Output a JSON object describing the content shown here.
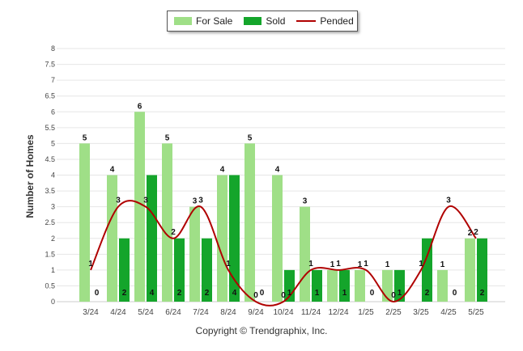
{
  "legend": {
    "for_sale": "For Sale",
    "sold": "Sold",
    "pended": "Pended"
  },
  "copyright": "Copyright © Trendgraphix, Inc.",
  "colors": {
    "for_sale": "#9fdf87",
    "sold": "#14a52b",
    "pended": "#b00000",
    "grid": "#e6e6e6"
  },
  "chart_data": {
    "type": "bar",
    "ylabel": "Number of Homes",
    "xlabel": "",
    "ylim": [
      0,
      8
    ],
    "yticks": [
      "0",
      "0.5",
      "1",
      "1.5",
      "2",
      "2.5",
      "3",
      "3.5",
      "4",
      "4.5",
      "5",
      "5.5",
      "6",
      "6.5",
      "7",
      "7.5",
      "8"
    ],
    "grid": true,
    "legend_position": "top-center",
    "categories": [
      "3/24",
      "4/24",
      "5/24",
      "6/24",
      "7/24",
      "8/24",
      "9/24",
      "10/24",
      "11/24",
      "12/24",
      "1/25",
      "2/25",
      "3/25",
      "4/25",
      "5/25"
    ],
    "series": [
      {
        "name": "For Sale",
        "kind": "bar",
        "values": [
          5,
          4,
          6,
          5,
          3,
          4,
          5,
          4,
          3,
          1,
          1,
          1,
          0,
          1,
          2
        ]
      },
      {
        "name": "Sold",
        "kind": "bar",
        "values": [
          0,
          2,
          4,
          2,
          2,
          4,
          0,
          1,
          1,
          1,
          0,
          1,
          2,
          0,
          2
        ]
      },
      {
        "name": "Pended",
        "kind": "line",
        "values": [
          1,
          3,
          3,
          2,
          3,
          1,
          0,
          0,
          1,
          1,
          1,
          0,
          1,
          3,
          2
        ]
      }
    ]
  }
}
